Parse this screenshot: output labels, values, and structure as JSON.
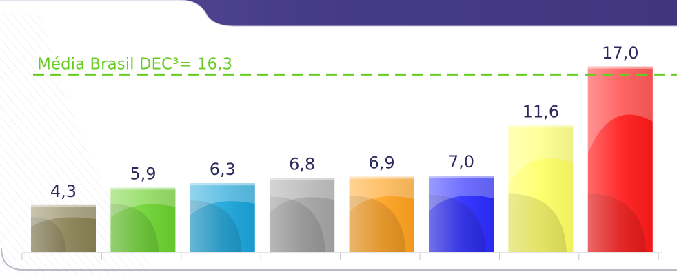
{
  "chart_data": {
    "type": "bar",
    "values": [
      4.3,
      5.9,
      6.3,
      6.8,
      6.9,
      7.0,
      11.6,
      17.0
    ],
    "value_labels": [
      "4,3",
      "5,9",
      "6,3",
      "6,8",
      "6,9",
      "7,0",
      "11,6",
      "17,0"
    ],
    "colors": [
      "#8a8255",
      "#6cd22f",
      "#1aa4da",
      "#a5a5a5",
      "#ffa21f",
      "#2b2bff",
      "#ffff66",
      "#ff1a1a"
    ],
    "reference_line": {
      "label": "Média Brasil DEC³= 16,3",
      "value": 16.3,
      "color": "#66cc22"
    },
    "ylim": [
      0,
      18.5
    ],
    "grid": false,
    "legend": "none"
  }
}
